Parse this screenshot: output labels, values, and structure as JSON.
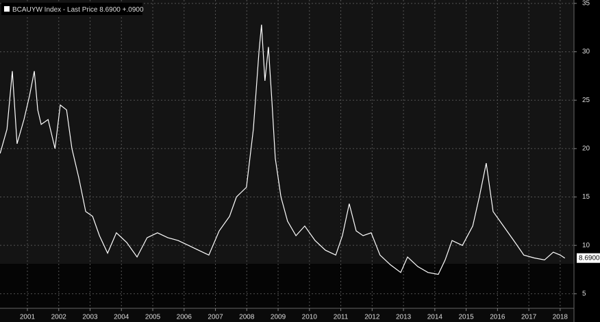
{
  "chart_data": {
    "type": "line",
    "series": [
      {
        "name": "BCAUYW Index - Last Price",
        "color": "#ffffff",
        "x": [
          2000.63,
          2000.85,
          2001.02,
          2001.17,
          2001.39,
          2001.57,
          2001.72,
          2001.83,
          2001.94,
          2002.16,
          2002.38,
          2002.55,
          2002.75,
          2002.92,
          2003.14,
          2003.36,
          2003.58,
          2003.8,
          2004.06,
          2004.34,
          2004.67,
          2005.0,
          2005.32,
          2005.65,
          2005.98,
          2006.31,
          2006.64,
          2006.96,
          2007.29,
          2007.62,
          2007.95,
          2008.17,
          2008.49,
          2008.71,
          2008.89,
          2008.97,
          2009.08,
          2009.19,
          2009.3,
          2009.41,
          2009.59,
          2009.8,
          2010.07,
          2010.35,
          2010.68,
          2011.01,
          2011.34,
          2011.55,
          2011.77,
          2011.99,
          2012.21,
          2012.47,
          2012.75,
          2013.08,
          2013.41,
          2013.63,
          2013.96,
          2014.28,
          2014.61,
          2014.83,
          2015.05,
          2015.38,
          2015.71,
          2015.92,
          2016.14,
          2016.36,
          2016.69,
          2017.02,
          2017.34,
          2017.67,
          2018.0,
          2018.28,
          2018.5,
          2018.65
        ],
        "values": [
          19.5,
          22,
          28,
          20.5,
          23,
          25.5,
          28,
          24,
          22.5,
          23,
          20,
          24.5,
          24,
          20,
          17,
          13.5,
          13,
          11,
          9.2,
          11.3,
          10.3,
          8.8,
          10.8,
          11.3,
          10.8,
          10.5,
          10,
          9.5,
          9,
          11.5,
          13,
          15,
          16,
          22,
          30,
          32.8,
          27,
          30.5,
          25,
          19,
          15,
          12.5,
          11,
          12,
          10.5,
          9.5,
          9,
          11,
          14.3,
          11.5,
          11,
          11.3,
          9,
          8,
          7.2,
          8.8,
          7.8,
          7.2,
          7,
          8.5,
          10.5,
          10,
          12,
          15,
          18.5,
          13.5,
          12,
          10.5,
          9,
          8.7,
          8.5,
          9.3,
          9,
          8.69
        ]
      }
    ],
    "last_price": {
      "value": 8.69,
      "label": "8.6900"
    },
    "change": "+.0900",
    "xlim": [
      2000.626,
      2018.94
    ],
    "xticks": [
      {
        "value": 2001.5,
        "label": "2001"
      },
      {
        "value": 2002.5,
        "label": "2002"
      },
      {
        "value": 2003.5,
        "label": "2003"
      },
      {
        "value": 2004.5,
        "label": "2004"
      },
      {
        "value": 2005.5,
        "label": "2005"
      },
      {
        "value": 2006.5,
        "label": "2006"
      },
      {
        "value": 2007.5,
        "label": "2007"
      },
      {
        "value": 2008.5,
        "label": "2008"
      },
      {
        "value": 2009.5,
        "label": "2009"
      },
      {
        "value": 2010.5,
        "label": "2010"
      },
      {
        "value": 2011.5,
        "label": "2011"
      },
      {
        "value": 2012.5,
        "label": "2012"
      },
      {
        "value": 2013.5,
        "label": "2013"
      },
      {
        "value": 2014.5,
        "label": "2014"
      },
      {
        "value": 2015.5,
        "label": "2015"
      },
      {
        "value": 2016.5,
        "label": "2016"
      },
      {
        "value": 2017.5,
        "label": "2017"
      },
      {
        "value": 2018.5,
        "label": "2018"
      }
    ],
    "ylim": [
      3.5,
      35.35
    ],
    "yticks": [
      5,
      10,
      15,
      20,
      25,
      30,
      35
    ],
    "grid": true
  }
}
